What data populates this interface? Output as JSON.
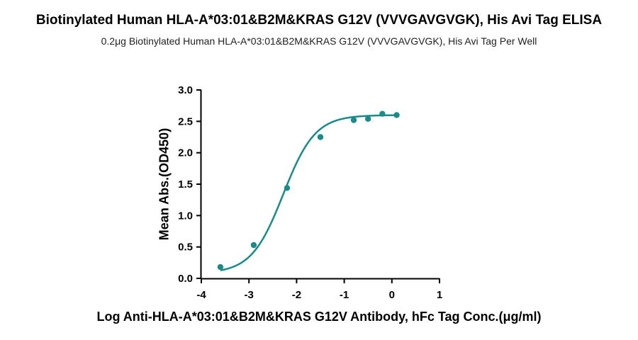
{
  "chart_data": {
    "type": "scatter",
    "title": "Biotinylated Human HLA-A*03:01&B2M&KRAS G12V (VVVGAVGVGK), His Avi Tag ELISA",
    "subtitle": "0.2μg Biotinylated Human HLA-A*03:01&B2M&KRAS G12V (VVVGAVGVGK), His Avi Tag Per Well",
    "xlabel": "Log Anti-HLA-A*03:01&B2M&KRAS G12V Antibody, hFc Tag Conc.(μg/ml)",
    "ylabel": "Mean Abs.(OD450)",
    "xlim": [
      -4,
      1
    ],
    "ylim": [
      0,
      3.0
    ],
    "x_ticks": [
      -4,
      -3,
      -2,
      -1,
      0,
      1
    ],
    "y_ticks": [
      "0.0",
      "0.5",
      "1.0",
      "1.5",
      "2.0",
      "2.5",
      "3.0"
    ],
    "grid": false,
    "color": "#1a8a8a",
    "points": [
      {
        "x": -3.6,
        "y": 0.18
      },
      {
        "x": -2.9,
        "y": 0.53
      },
      {
        "x": -2.2,
        "y": 1.44
      },
      {
        "x": -1.5,
        "y": 2.25
      },
      {
        "x": -0.8,
        "y": 2.52
      },
      {
        "x": -0.5,
        "y": 2.54
      },
      {
        "x": -0.2,
        "y": 2.62
      },
      {
        "x": 0.1,
        "y": 2.6
      }
    ],
    "fit": {
      "model": "4PL",
      "bottom": 0.08,
      "top": 2.6,
      "logEC50": -2.28,
      "hill": 1.3,
      "x_range": [
        -3.6,
        0.1
      ]
    }
  }
}
